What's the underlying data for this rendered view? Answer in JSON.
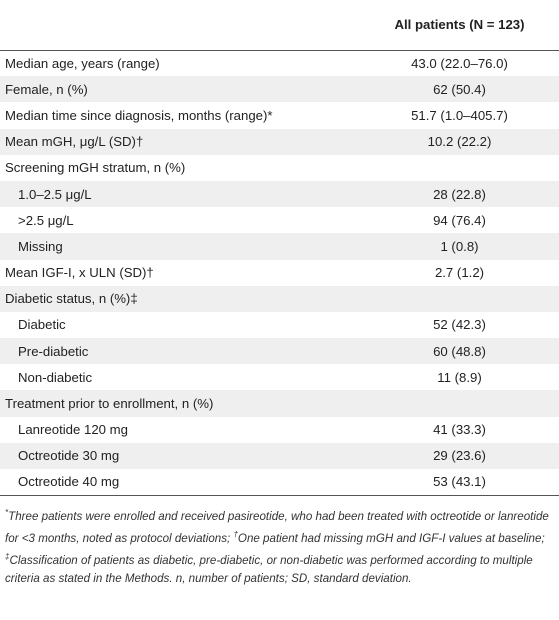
{
  "table": {
    "header": {
      "label": "",
      "value_label": "All patients (N = 123)"
    },
    "rows": [
      {
        "label": "Median age, years (range)",
        "value": "43.0 (22.0–76.0)",
        "indent": false
      },
      {
        "label": "Female, n (%)",
        "value": "62 (50.4)",
        "indent": false
      },
      {
        "label": "Median time since diagnosis, months (range)*",
        "value": "51.7 (1.0–405.7)",
        "indent": false
      },
      {
        "label": "Mean mGH, μg/L (SD)†",
        "value": "10.2 (22.2)",
        "indent": false
      },
      {
        "label": "Screening mGH stratum, n (%)",
        "value": "",
        "indent": false
      },
      {
        "label": "1.0–2.5 μg/L",
        "value": "28 (22.8)",
        "indent": true
      },
      {
        "label": ">2.5 μg/L",
        "value": "94 (76.4)",
        "indent": true
      },
      {
        "label": "Missing",
        "value": "1 (0.8)",
        "indent": true
      },
      {
        "label": "Mean IGF-I, x ULN (SD)†",
        "value": "2.7 (1.2)",
        "indent": false
      },
      {
        "label": "Diabetic status, n (%)‡",
        "value": "",
        "indent": false
      },
      {
        "label": "Diabetic",
        "value": "52 (42.3)",
        "indent": true
      },
      {
        "label": "Pre-diabetic",
        "value": "60 (48.8)",
        "indent": true
      },
      {
        "label": "Non-diabetic",
        "value": "11 (8.9)",
        "indent": true
      },
      {
        "label": "Treatment prior to enrollment, n (%)",
        "value": "",
        "indent": false
      },
      {
        "label": "Lanreotide 120 mg",
        "value": "41 (33.3)",
        "indent": true
      },
      {
        "label": "Octreotide 30 mg",
        "value": "29 (23.6)",
        "indent": true
      },
      {
        "label": "Octreotide 40 mg",
        "value": "53 (43.1)",
        "indent": true
      }
    ]
  },
  "footnote": {
    "star_mark": "*",
    "star_text": "Three patients were enrolled and received pasireotide, who had been treated with octreotide or lanreotide for <3 months, noted as protocol deviations; ",
    "dagger_mark": "†",
    "dagger_text": "One patient had missing mGH and IGF-I values at baseline; ",
    "ddagger_mark": "‡",
    "ddagger_text": "Classification of patients as diabetic, pre-diabetic, or non-diabetic was performed according to multiple criteria as stated in the Methods. n, number of patients; SD, standard deviation."
  },
  "colors": {
    "stripe": "#efefef",
    "rule": "#555555",
    "text": "#222222"
  }
}
